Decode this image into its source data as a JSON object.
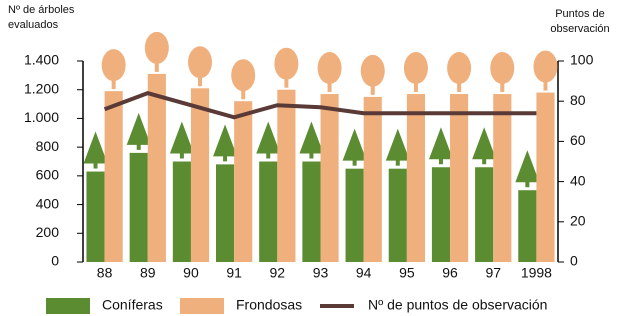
{
  "chart_data": {
    "type": "bar",
    "y_label": [
      "Nº de árboles",
      "evaluados"
    ],
    "y2_label": [
      "Puntos de",
      "observación"
    ],
    "categories": [
      "88",
      "89",
      "90",
      "91",
      "92",
      "93",
      "94",
      "95",
      "96",
      "97",
      "1998"
    ],
    "series": [
      {
        "name": "Coníferas",
        "color": "#5b8c32",
        "type": "bar",
        "values": [
          630,
          760,
          700,
          680,
          700,
          700,
          650,
          650,
          660,
          660,
          500
        ]
      },
      {
        "name": "Frondosas",
        "color": "#f0b07e",
        "type": "bar",
        "values": [
          1190,
          1310,
          1210,
          1120,
          1200,
          1170,
          1150,
          1170,
          1170,
          1170,
          1180
        ]
      },
      {
        "name": "Nº de puntos de observación",
        "color": "#5a3a36",
        "type": "line",
        "axis": "y2",
        "values": [
          76,
          84,
          78,
          72,
          78,
          77,
          74,
          74,
          74,
          74,
          74
        ]
      }
    ],
    "ylim": [
      0,
      1400
    ],
    "yticks": [
      0,
      200,
      400,
      600,
      800,
      {
        "value": 1000,
        "label": "1.000"
      },
      {
        "value": 1200,
        "label": "1.200"
      },
      {
        "value": 1400,
        "label": "1.400"
      }
    ],
    "y2lim": [
      0,
      100
    ],
    "y2ticks": [
      0,
      20,
      40,
      60,
      80,
      100
    ],
    "legend": "bottom"
  }
}
